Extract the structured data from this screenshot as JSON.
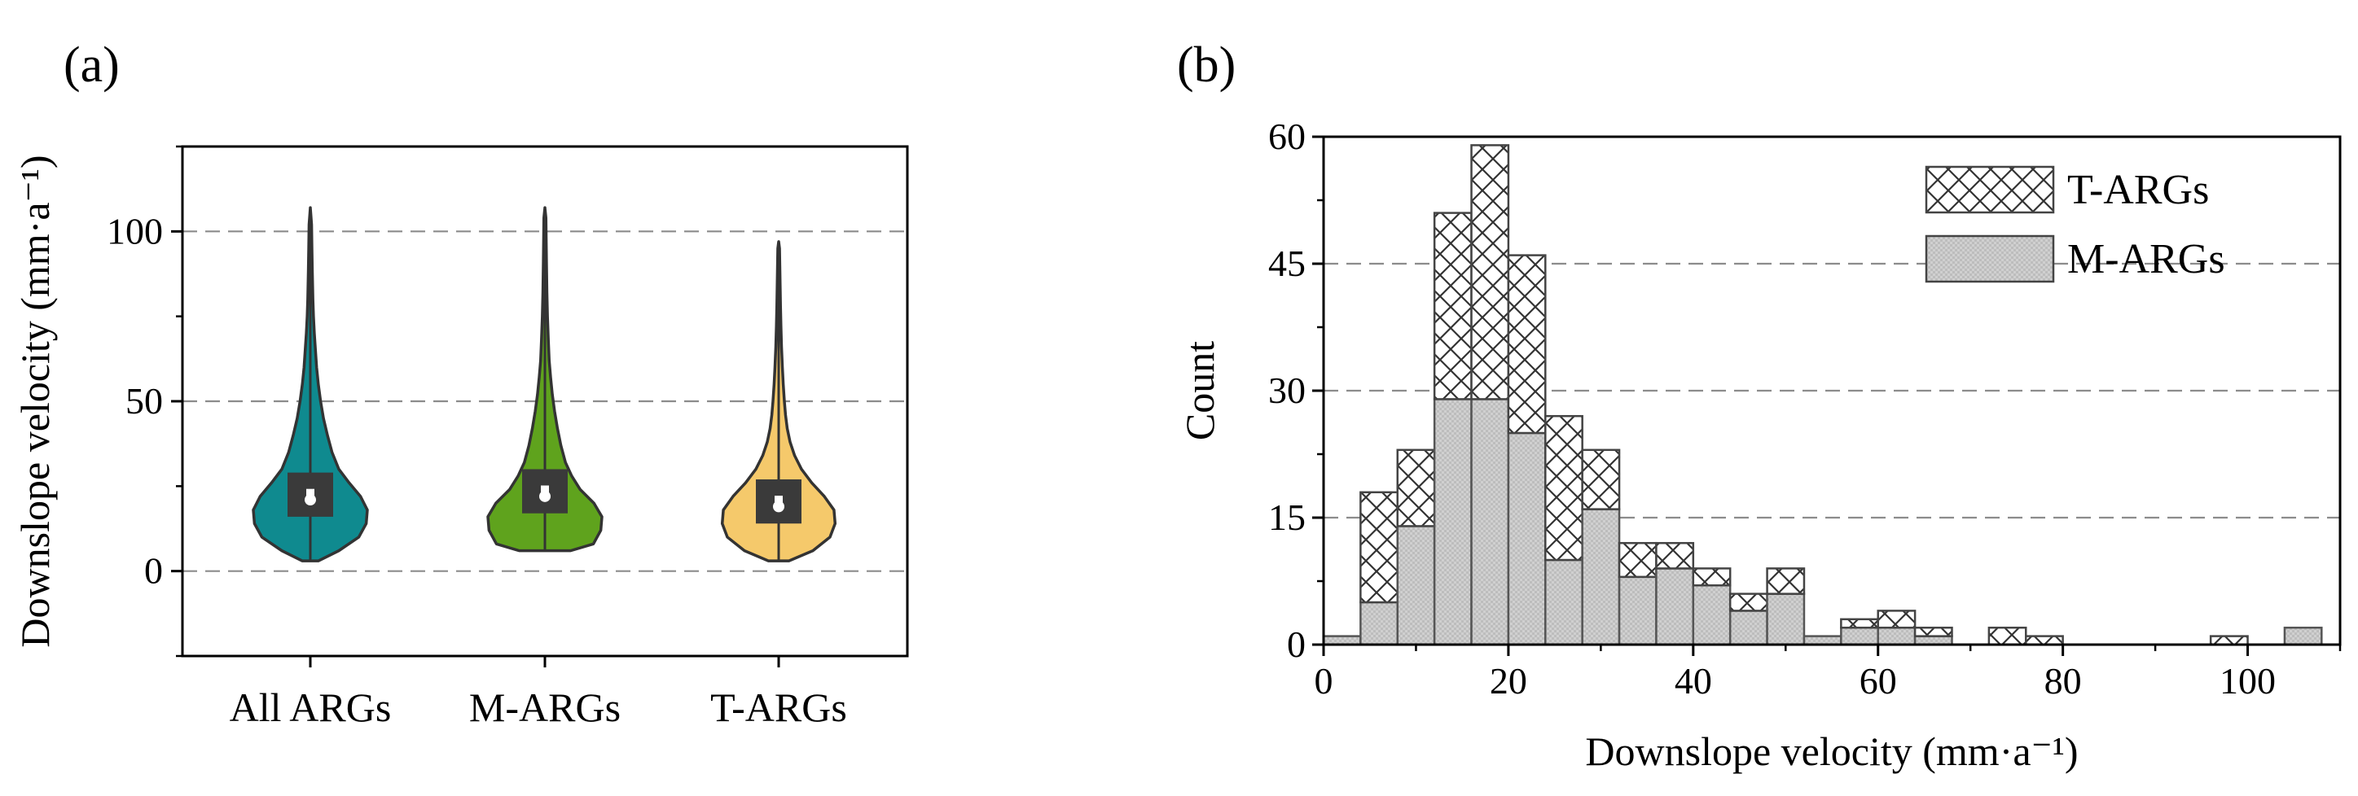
{
  "panels": [
    {
      "label": "(a)",
      "chart_data": {
        "type": "violin",
        "ylabel": "Downslope velocity (mm·a⁻¹)",
        "ylim": [
          -25,
          125
        ],
        "yticks": [
          0,
          50,
          100
        ],
        "grid": "horizontal dashed at 0, 50, 100",
        "series": [
          {
            "name": "All ARGs",
            "color": "#0f8a8f",
            "min": 3,
            "max": 107,
            "q1": 16,
            "median": 21,
            "q3": 29,
            "mean": 23,
            "density": [
              [
                3,
                0.14
              ],
              [
                6,
                0.5
              ],
              [
                10,
                0.85
              ],
              [
                14,
                0.98
              ],
              [
                18,
                1.0
              ],
              [
                22,
                0.88
              ],
              [
                26,
                0.68
              ],
              [
                30,
                0.5
              ],
              [
                35,
                0.38
              ],
              [
                40,
                0.3
              ],
              [
                45,
                0.23
              ],
              [
                50,
                0.18
              ],
              [
                55,
                0.14
              ],
              [
                60,
                0.11
              ],
              [
                65,
                0.09
              ],
              [
                70,
                0.07
              ],
              [
                75,
                0.055
              ],
              [
                80,
                0.045
              ],
              [
                88,
                0.035
              ],
              [
                95,
                0.028
              ],
              [
                102,
                0.022
              ],
              [
                107,
                0.0
              ]
            ]
          },
          {
            "name": "M-ARGs",
            "color": "#5fa31d",
            "min": 6,
            "max": 107,
            "q1": 17,
            "median": 22,
            "q3": 30,
            "mean": 24,
            "density": [
              [
                6,
                0.45
              ],
              [
                8,
                0.85
              ],
              [
                12,
                0.98
              ],
              [
                16,
                1.0
              ],
              [
                20,
                0.86
              ],
              [
                24,
                0.62
              ],
              [
                28,
                0.47
              ],
              [
                32,
                0.36
              ],
              [
                37,
                0.28
              ],
              [
                42,
                0.22
              ],
              [
                47,
                0.17
              ],
              [
                52,
                0.13
              ],
              [
                57,
                0.1
              ],
              [
                62,
                0.075
              ],
              [
                68,
                0.06
              ],
              [
                75,
                0.045
              ],
              [
                82,
                0.035
              ],
              [
                90,
                0.028
              ],
              [
                98,
                0.022
              ],
              [
                104,
                0.018
              ],
              [
                107,
                0.0
              ]
            ]
          },
          {
            "name": "T-ARGs",
            "color": "#f5c96b",
            "min": 3,
            "max": 97,
            "q1": 14,
            "median": 19,
            "q3": 27,
            "mean": 21,
            "density": [
              [
                3,
                0.18
              ],
              [
                6,
                0.6
              ],
              [
                10,
                0.9
              ],
              [
                14,
                0.99
              ],
              [
                18,
                0.97
              ],
              [
                22,
                0.8
              ],
              [
                26,
                0.58
              ],
              [
                30,
                0.4
              ],
              [
                34,
                0.28
              ],
              [
                38,
                0.2
              ],
              [
                42,
                0.15
              ],
              [
                46,
                0.12
              ],
              [
                50,
                0.1
              ],
              [
                55,
                0.08
              ],
              [
                60,
                0.065
              ],
              [
                66,
                0.05
              ],
              [
                72,
                0.04
              ],
              [
                78,
                0.032
              ],
              [
                84,
                0.026
              ],
              [
                90,
                0.02
              ],
              [
                95,
                0.015
              ],
              [
                97,
                0.0
              ]
            ]
          }
        ]
      }
    },
    {
      "label": "(b)",
      "chart_data": {
        "type": "bar",
        "stacked": true,
        "xlabel": "Downslope velocity (mm·a⁻¹)",
        "ylabel": "Count",
        "xlim": [
          0,
          110
        ],
        "ylim": [
          0,
          60
        ],
        "xticks": [
          0,
          20,
          40,
          60,
          80,
          100
        ],
        "yticks": [
          0,
          15,
          30,
          45,
          60
        ],
        "grid": "horizontal dashed at 15, 30, 45",
        "bin_width": 4,
        "bin_starts": [
          0,
          4,
          8,
          12,
          16,
          20,
          24,
          28,
          32,
          36,
          40,
          44,
          48,
          52,
          56,
          60,
          64,
          68,
          72,
          76,
          80,
          84,
          88,
          92,
          96,
          100,
          104
        ],
        "legend_position": "top-right",
        "series": [
          {
            "name": "M-ARGs",
            "pattern": "gray-checker",
            "values": [
              1,
              5,
              14,
              29,
              29,
              25,
              10,
              16,
              8,
              9,
              7,
              4,
              6,
              1,
              2,
              2,
              1,
              0,
              0,
              0,
              0,
              0,
              0,
              0,
              0,
              0,
              2
            ]
          },
          {
            "name": "T-ARGs",
            "pattern": "crosshatch",
            "values": [
              0,
              13,
              9,
              22,
              30,
              21,
              17,
              7,
              4,
              3,
              2,
              2,
              3,
              0,
              1,
              2,
              1,
              0,
              2,
              1,
              0,
              0,
              0,
              0,
              1,
              0,
              0
            ]
          }
        ]
      }
    }
  ]
}
